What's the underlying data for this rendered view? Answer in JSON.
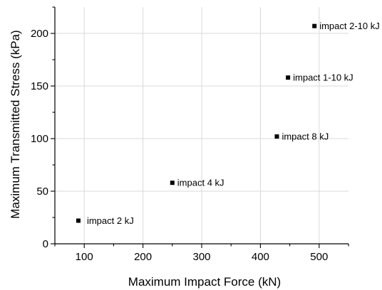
{
  "chart_data": {
    "type": "scatter",
    "title": "",
    "xlabel": "Maximum Impact Force (kN)",
    "ylabel": "Maximum Transmitted Stress (kPa)",
    "xlim": [
      50,
      550
    ],
    "ylim": [
      0,
      225
    ],
    "xticks": [
      100,
      200,
      300,
      400,
      500
    ],
    "yticks": [
      0,
      50,
      100,
      150,
      200
    ],
    "grid": true,
    "legend": "none",
    "marker": "square",
    "marker_color": "#000000",
    "points": [
      {
        "label": "impact 2 kJ",
        "x": 90,
        "y": 22
      },
      {
        "label": "impact 4 kJ",
        "x": 250,
        "y": 58
      },
      {
        "label": "impact 8 kJ",
        "x": 428,
        "y": 102
      },
      {
        "label": "impact 1-10 kJ",
        "x": 447,
        "y": 158
      },
      {
        "label": "impact 2-10 kJ",
        "x": 492,
        "y": 207
      }
    ]
  }
}
